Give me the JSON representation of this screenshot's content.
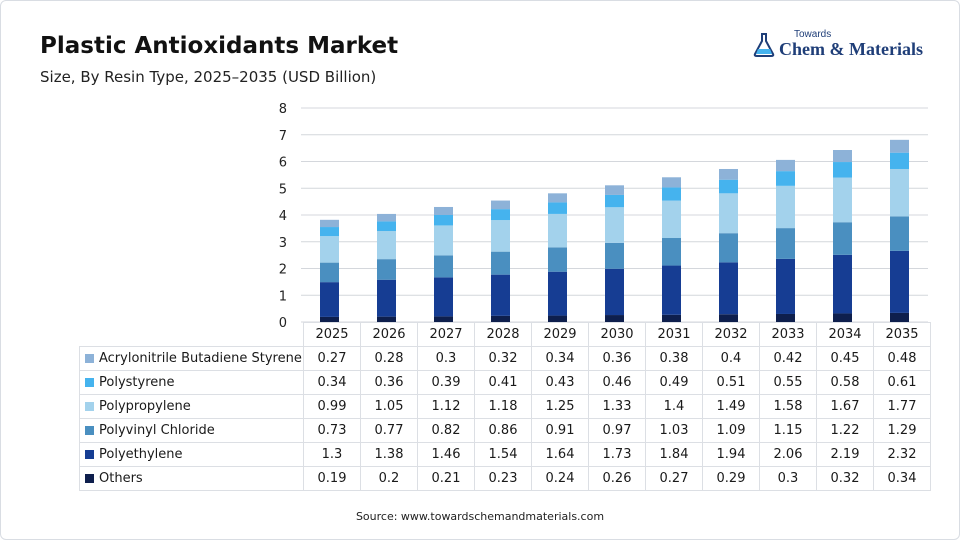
{
  "header": {
    "title": "Plastic Antioxidants Market",
    "subtitle": "Size, By Resin Type, 2025–2035 (USD Billion)"
  },
  "logo": {
    "top_text": "Towards",
    "main_text": "Chem & Materials",
    "icon": "flask-icon",
    "color": "#1f3e78"
  },
  "source": "Source: www.towardschemandmaterials.com",
  "chart_data": {
    "type": "bar",
    "stacked": true,
    "categories": [
      "2025",
      "2026",
      "2027",
      "2028",
      "2029",
      "2030",
      "2031",
      "2032",
      "2033",
      "2034",
      "2035"
    ],
    "ylim": [
      0,
      8
    ],
    "yticks": [
      0,
      1,
      2,
      3,
      4,
      5,
      6,
      7,
      8
    ],
    "grid": true,
    "legend": "data table below chart",
    "series": [
      {
        "name": "Others",
        "color": "#0e1f4d",
        "values": [
          0.19,
          0.2,
          0.21,
          0.23,
          0.24,
          0.26,
          0.27,
          0.29,
          0.3,
          0.32,
          0.34
        ]
      },
      {
        "name": "Polyethylene",
        "color": "#163d93",
        "values": [
          1.3,
          1.38,
          1.46,
          1.54,
          1.64,
          1.73,
          1.84,
          1.94,
          2.06,
          2.19,
          2.32
        ]
      },
      {
        "name": "Polyvinyl Chloride",
        "color": "#4a8fc0",
        "values": [
          0.73,
          0.77,
          0.82,
          0.86,
          0.91,
          0.97,
          1.03,
          1.09,
          1.15,
          1.22,
          1.29
        ]
      },
      {
        "name": "Polypropylene",
        "color": "#a3d2ec",
        "values": [
          0.99,
          1.05,
          1.12,
          1.18,
          1.25,
          1.33,
          1.4,
          1.49,
          1.58,
          1.67,
          1.77
        ]
      },
      {
        "name": "Polystyrene",
        "color": "#45b3ee",
        "values": [
          0.34,
          0.36,
          0.39,
          0.41,
          0.43,
          0.46,
          0.49,
          0.51,
          0.55,
          0.58,
          0.61
        ]
      },
      {
        "name": "Acrylonitrile Butadiene Styrene",
        "color": "#8db2d8",
        "values": [
          0.27,
          0.28,
          0.3,
          0.32,
          0.34,
          0.36,
          0.38,
          0.4,
          0.42,
          0.45,
          0.48
        ]
      }
    ],
    "table_rows": [
      {
        "name": "Acrylonitrile Butadiene Styrene",
        "values": [
          "0.27",
          "0.28",
          "0.3",
          "0.32",
          "0.34",
          "0.36",
          "0.38",
          "0.4",
          "0.42",
          "0.45",
          "0.48"
        ]
      },
      {
        "name": "Polystyrene",
        "values": [
          "0.34",
          "0.36",
          "0.39",
          "0.41",
          "0.43",
          "0.46",
          "0.49",
          "0.51",
          "0.55",
          "0.58",
          "0.61"
        ]
      },
      {
        "name": "Polypropylene",
        "values": [
          "0.99",
          "1.05",
          "1.12",
          "1.18",
          "1.25",
          "1.33",
          "1.4",
          "1.49",
          "1.58",
          "1.67",
          "1.77"
        ]
      },
      {
        "name": "Polyvinyl Chloride",
        "values": [
          "0.73",
          "0.77",
          "0.82",
          "0.86",
          "0.91",
          "0.97",
          "1.03",
          "1.09",
          "1.15",
          "1.22",
          "1.29"
        ]
      },
      {
        "name": "Polyethylene",
        "values": [
          "1.3",
          "1.38",
          "1.46",
          "1.54",
          "1.64",
          "1.73",
          "1.84",
          "1.94",
          "2.06",
          "2.19",
          "2.32"
        ]
      },
      {
        "name": "Others",
        "values": [
          "0.19",
          "0.2",
          "0.21",
          "0.23",
          "0.24",
          "0.26",
          "0.27",
          "0.29",
          "0.3",
          "0.32",
          "0.34"
        ]
      }
    ]
  }
}
